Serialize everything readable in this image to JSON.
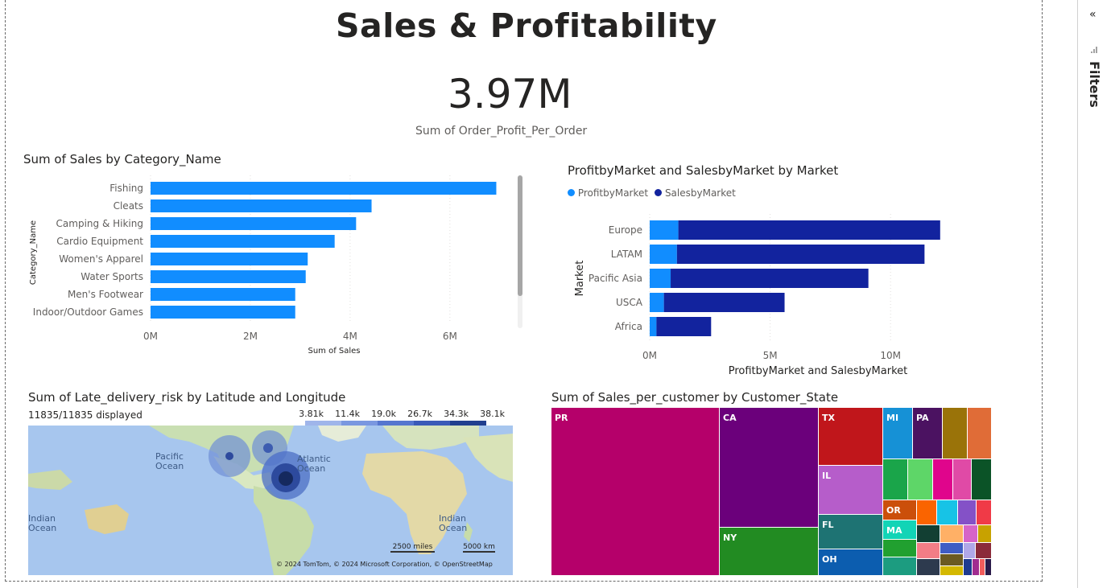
{
  "report": {
    "title": "Sales & Profitability",
    "card": {
      "value": "3.97M",
      "label": "Sum of Order_Profit_Per_Order"
    }
  },
  "filters_pane": {
    "label": "Filters",
    "collapse_icon": "chevron-double-left-icon",
    "filter_icon": "filter-icon"
  },
  "category_chart": {
    "title": "Sum of Sales by Category_Name",
    "xlabel": "Sum of Sales",
    "ylabel": "Category_Name",
    "xticks": [
      "0M",
      "2M",
      "4M",
      "6M"
    ],
    "color": "#118DFF"
  },
  "market_chart": {
    "title": "ProfitbyMarket and SalesbyMarket by Market",
    "xlabel": "ProfitbyMarket and SalesbyMarket",
    "ylabel": "Market",
    "xticks": [
      "0M",
      "5M",
      "10M"
    ],
    "legend": [
      {
        "name": "ProfitbyMarket",
        "color": "#118DFF"
      },
      {
        "name": "SalesbyMarket",
        "color": "#12239E"
      }
    ]
  },
  "map": {
    "title": "Sum of Late_delivery_risk by Latitude and Longitude",
    "displayed": "11835/11835 displayed",
    "legend": [
      "3.81k",
      "11.4k",
      "19.0k",
      "26.7k",
      "34.3k",
      "38.1k"
    ],
    "labels": {
      "pacific": "Pacific\nOcean",
      "atlantic": "Atlantic\nOcean",
      "indian_left": "Indian\nOcean",
      "indian_right": "Indian\nOcean"
    },
    "scale": {
      "miles": "2500 miles",
      "km": "5000 km"
    },
    "attribution": "© 2024 TomTom, © 2024 Microsoft Corporation, © OpenStreetMap"
  },
  "treemap": {
    "title": "Sum of Sales_per_customer by Customer_State",
    "labels": [
      "PR",
      "CA",
      "NY",
      "TX",
      "IL",
      "FL",
      "OH",
      "MI",
      "PA",
      "OR",
      "MA"
    ]
  },
  "chart_data": [
    {
      "type": "bar",
      "title": "Sum of Sales by Category_Name",
      "xlabel": "Sum of Sales",
      "ylabel": "Category_Name",
      "categories": [
        "Fishing",
        "Cleats",
        "Camping & Hiking",
        "Cardio Equipment",
        "Women's Apparel",
        "Water Sports",
        "Men's Footwear",
        "Indoor/Outdoor Games"
      ],
      "values": [
        6.93,
        4.43,
        4.12,
        3.69,
        3.15,
        3.11,
        2.9,
        2.9
      ],
      "unit": "M",
      "xlim": [
        0,
        7.1
      ]
    },
    {
      "type": "bar",
      "title": "ProfitbyMarket and SalesbyMarket by Market",
      "xlabel": "ProfitbyMarket and SalesbyMarket",
      "ylabel": "Market",
      "categories": [
        "Europe",
        "LATAM",
        "Pacific Asia",
        "USCA",
        "Africa"
      ],
      "series": [
        {
          "name": "ProfitbyMarket",
          "values": [
            1.19,
            1.13,
            0.87,
            0.59,
            0.28
          ]
        },
        {
          "name": "SalesbyMarket",
          "values": [
            10.87,
            10.28,
            8.21,
            5.01,
            2.27
          ]
        }
      ],
      "stacked": true,
      "unit": "M",
      "xlim": [
        0,
        12.2
      ]
    }
  ]
}
